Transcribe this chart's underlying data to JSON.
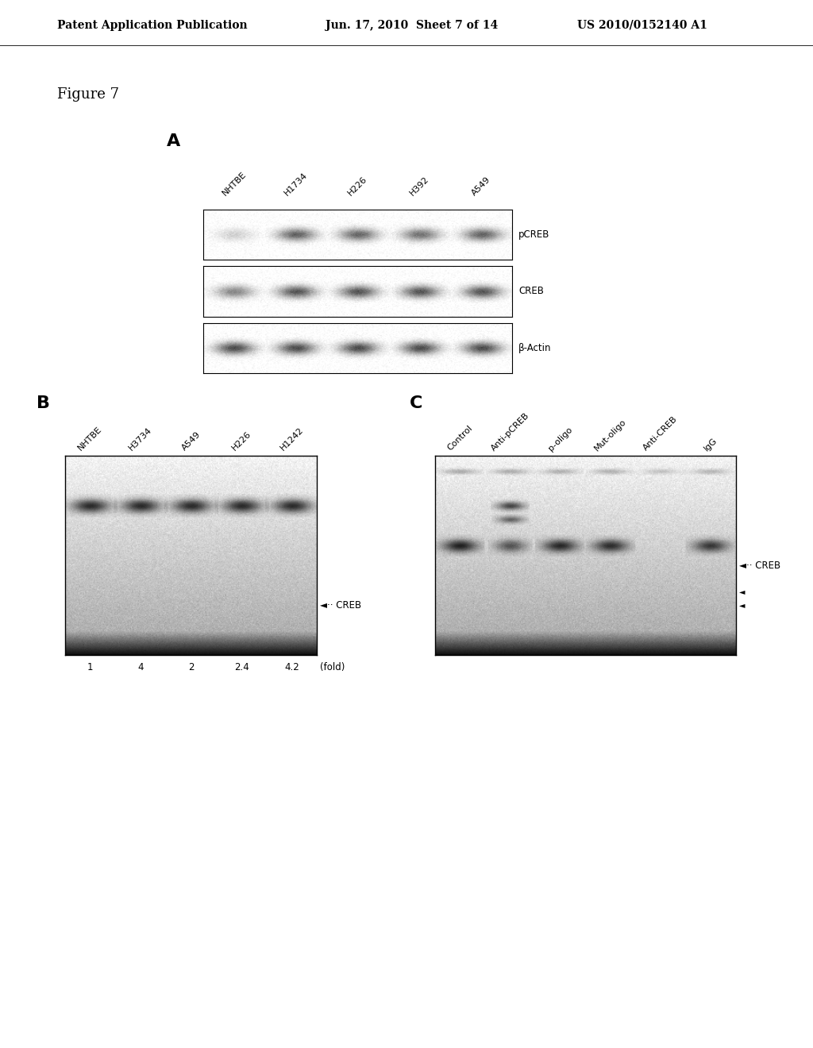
{
  "bg_color": "#ffffff",
  "header_left": "Patent Application Publication",
  "header_mid": "Jun. 17, 2010  Sheet 7 of 14",
  "header_right": "US 2010/0152140 A1",
  "figure_label": "Figure 7",
  "panel_A_label": "A",
  "panel_A_col_labels": [
    "NHTBE",
    "H1734",
    "H226",
    "H392",
    "A549"
  ],
  "panel_A_row_labels": [
    "pCREB",
    "CREB",
    "β-Actin"
  ],
  "panel_B_label": "B",
  "panel_B_col_labels": [
    "NHTBE",
    "H3734",
    "A549",
    "H226",
    "H1242"
  ],
  "panel_B_fold_values": [
    "1",
    "4",
    "2",
    "2.4",
    "4.2"
  ],
  "panel_B_fold_label": "(fold)",
  "panel_B_creb_label": "◄·· CREB",
  "panel_C_label": "C",
  "panel_C_col_labels": [
    "Control",
    "Anti-pCREB",
    "p-oligo",
    "Mut-oligo",
    "Anti-CREB",
    "IgG"
  ],
  "panel_C_creb_label": "◄·· CREB"
}
